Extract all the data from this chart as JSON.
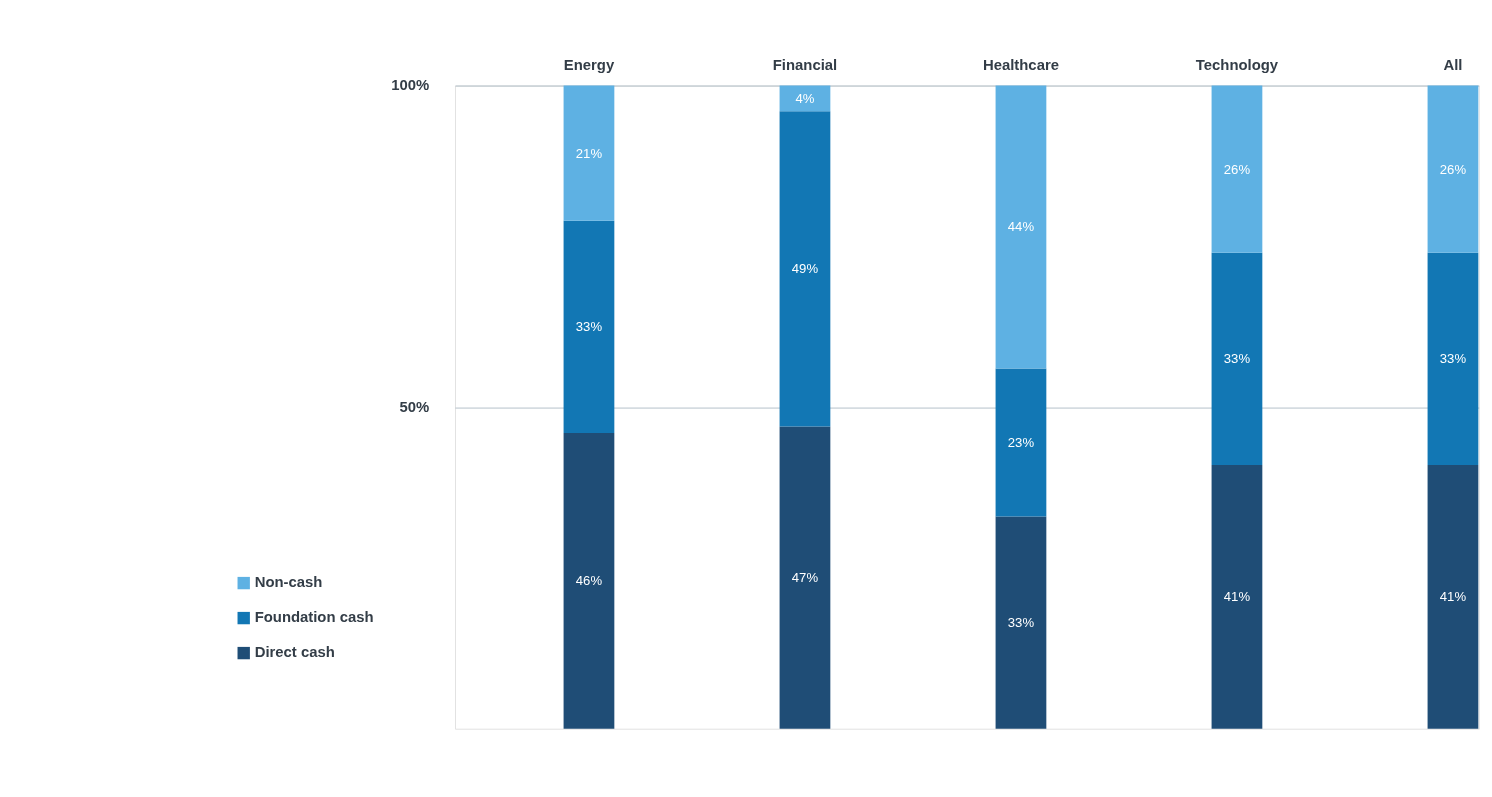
{
  "chart_data": {
    "type": "bar",
    "stacked": true,
    "categories": [
      "Energy",
      "Financial",
      "Healthcare",
      "Technology",
      "All"
    ],
    "series": [
      {
        "name": "Direct cash",
        "color": "#1f4d76",
        "values": [
          46,
          47,
          33,
          41,
          41
        ],
        "value_labels": [
          "46%",
          "47%",
          "33%",
          "41%",
          "41%"
        ]
      },
      {
        "name": "Foundation cash",
        "color": "#1277b4",
        "values": [
          33,
          49,
          23,
          33,
          33
        ],
        "value_labels": [
          "33%",
          "49%",
          "23%",
          "33%",
          "33%"
        ]
      },
      {
        "name": "Non-cash",
        "color": "#5eb1e3",
        "values": [
          21,
          4,
          44,
          26,
          26
        ],
        "value_labels": [
          "21%",
          "4%",
          "44%",
          "26%",
          "26%"
        ]
      }
    ],
    "ylim": [
      0,
      100
    ],
    "yticks": [
      {
        "value": 50,
        "label": "50%"
      },
      {
        "value": 100,
        "label": "100%"
      }
    ],
    "grid": "y",
    "legend": "bottom left"
  }
}
